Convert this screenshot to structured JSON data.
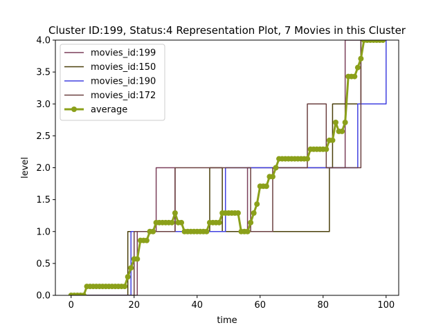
{
  "chart_data": {
    "type": "line",
    "title": "Cluster ID:199, Status:4 Representation Plot, 7 Movies in this Cluster",
    "xlabel": "time",
    "ylabel": "level",
    "xlim": [
      -5,
      104
    ],
    "ylim": [
      0,
      4
    ],
    "xticks": [
      0,
      20,
      40,
      60,
      80,
      100
    ],
    "yticks": [
      0.0,
      0.5,
      1.0,
      1.5,
      2.0,
      2.5,
      3.0,
      3.5,
      4.0
    ],
    "xtick_labels": [
      "0",
      "20",
      "40",
      "60",
      "80",
      "100"
    ],
    "ytick_labels": [
      "0.0",
      "0.5",
      "1.0",
      "1.5",
      "2.0",
      "2.5",
      "3.0",
      "3.5",
      "4.0"
    ],
    "grid": false,
    "legend_position": "top-left",
    "series": [
      {
        "name": "movies_id:199",
        "color": "#7b3f5a",
        "step": true,
        "x": [
          0,
          21,
          27,
          33,
          34,
          56,
          83,
          87,
          100
        ],
        "y": [
          0,
          1,
          2,
          1,
          1,
          2,
          2,
          4,
          4
        ]
      },
      {
        "name": "movies_id:150",
        "color": "#4a3f0a",
        "step": true,
        "x": [
          0,
          18,
          32,
          35,
          44,
          48,
          82,
          83,
          91,
          92,
          100
        ],
        "y": [
          0,
          1,
          1,
          1,
          2,
          1,
          2,
          3,
          3,
          4,
          4
        ]
      },
      {
        "name": "movies_id:190",
        "color": "#4040e0",
        "step": true,
        "x": [
          0,
          19,
          49,
          87,
          91,
          100
        ],
        "y": [
          0,
          1,
          2,
          2,
          3,
          4
        ]
      },
      {
        "name": "movies_id:172",
        "color": "#6b4040",
        "step": true,
        "x": [
          0,
          20,
          32,
          33,
          57,
          64,
          75,
          81,
          92,
          100
        ],
        "y": [
          0,
          1,
          1,
          2,
          1,
          2,
          3,
          2,
          4,
          4
        ]
      },
      {
        "name": "average",
        "color": "#8ba01a",
        "step": false,
        "marker": "circle",
        "x": [
          0,
          1,
          2,
          3,
          4,
          5,
          6,
          7,
          8,
          9,
          10,
          11,
          12,
          13,
          14,
          15,
          16,
          17,
          18,
          19,
          20,
          21,
          22,
          23,
          24,
          25,
          26,
          27,
          28,
          29,
          30,
          31,
          32,
          33,
          34,
          35,
          36,
          37,
          38,
          39,
          40,
          41,
          42,
          43,
          44,
          45,
          46,
          47,
          48,
          49,
          50,
          51,
          52,
          53,
          54,
          55,
          56,
          57,
          58,
          59,
          60,
          61,
          62,
          63,
          64,
          65,
          66,
          67,
          68,
          69,
          70,
          71,
          72,
          73,
          74,
          75,
          76,
          77,
          78,
          79,
          80,
          81,
          82,
          83,
          84,
          85,
          86,
          87,
          88,
          89,
          90,
          91,
          92,
          93,
          94,
          95,
          96,
          97,
          98,
          99
        ],
        "y": [
          0,
          0,
          0,
          0,
          0,
          0.14,
          0.14,
          0.14,
          0.14,
          0.14,
          0.14,
          0.14,
          0.14,
          0.14,
          0.14,
          0.14,
          0.14,
          0.14,
          0.29,
          0.43,
          0.57,
          0.57,
          0.86,
          0.86,
          0.86,
          1.0,
          1.0,
          1.14,
          1.14,
          1.14,
          1.14,
          1.14,
          1.14,
          1.29,
          1.14,
          1.14,
          1.0,
          1.0,
          1.0,
          1.0,
          1.0,
          1.0,
          1.0,
          1.0,
          1.14,
          1.14,
          1.14,
          1.14,
          1.29,
          1.29,
          1.29,
          1.29,
          1.29,
          1.29,
          1.0,
          1.0,
          1.0,
          1.14,
          1.29,
          1.43,
          1.71,
          1.71,
          1.71,
          1.86,
          1.86,
          2.0,
          2.14,
          2.14,
          2.14,
          2.14,
          2.14,
          2.14,
          2.14,
          2.14,
          2.14,
          2.14,
          2.29,
          2.29,
          2.29,
          2.29,
          2.29,
          2.29,
          2.43,
          2.43,
          2.71,
          2.57,
          2.57,
          2.71,
          3.43,
          3.43,
          3.43,
          3.57,
          3.71,
          4.0,
          4.0,
          4.0,
          4.0,
          4.0,
          4.0,
          4.0
        ]
      }
    ]
  }
}
